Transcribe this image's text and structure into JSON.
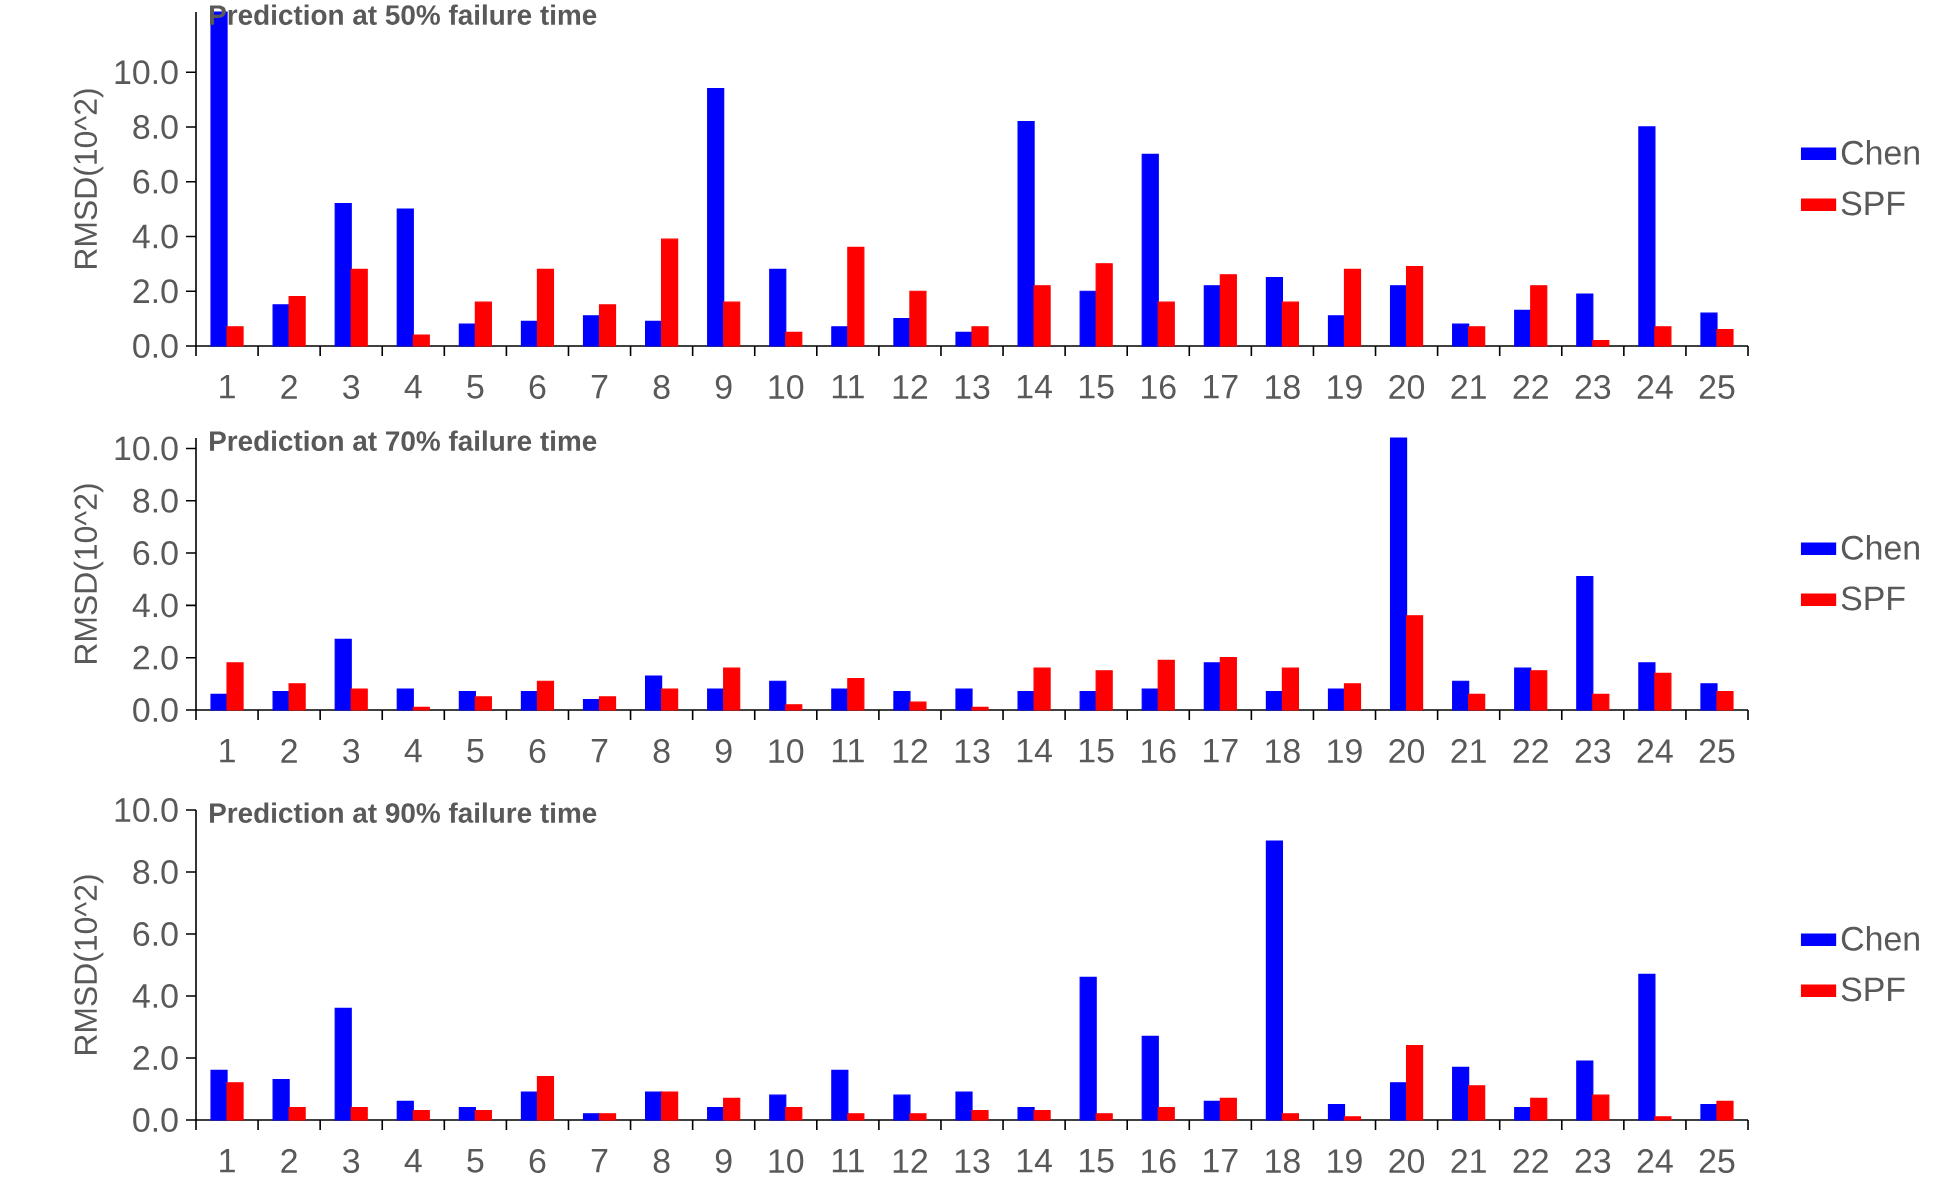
{
  "chart_data": [
    {
      "type": "bar",
      "title": "Prediction at 50% failure time",
      "ylabel": "RMSD(10^2)",
      "legend": "right",
      "categories": [
        "1",
        "2",
        "3",
        "4",
        "5",
        "6",
        "7",
        "8",
        "9",
        "10",
        "11",
        "12",
        "13",
        "14",
        "15",
        "16",
        "17",
        "18",
        "19",
        "20",
        "21",
        "22",
        "23",
        "24",
        "25"
      ],
      "series": [
        {
          "name": "Chen",
          "color": "#0000ff",
          "values": [
            12.2,
            1.5,
            5.2,
            5.0,
            0.8,
            0.9,
            1.1,
            0.9,
            9.4,
            2.8,
            0.7,
            1.0,
            0.5,
            8.2,
            2.0,
            7.0,
            2.2,
            2.5,
            1.1,
            2.2,
            0.8,
            1.3,
            1.9,
            8.0,
            1.2
          ]
        },
        {
          "name": "SPF",
          "color": "#ff0000",
          "values": [
            0.7,
            1.8,
            2.8,
            0.4,
            1.6,
            2.8,
            1.5,
            3.9,
            1.6,
            0.5,
            3.6,
            2.0,
            0.7,
            2.2,
            3.0,
            1.6,
            2.6,
            1.6,
            2.8,
            2.9,
            0.7,
            2.2,
            0.2,
            0.7,
            0.6
          ]
        }
      ],
      "ylim": [
        0,
        12.2
      ],
      "yticks": [
        {
          "value": 0,
          "label": "0.0"
        },
        {
          "value": 2,
          "label": "2.0"
        },
        {
          "value": 4,
          "label": "4.0"
        },
        {
          "value": 6,
          "label": "6.0"
        },
        {
          "value": 8,
          "label": "8.0"
        },
        {
          "value": 10,
          "label": "10.0"
        }
      ]
    },
    {
      "type": "bar",
      "title": "Prediction at 70% failure time",
      "ylabel": "RMSD(10^2)",
      "legend": "right",
      "categories": [
        "1",
        "2",
        "3",
        "4",
        "5",
        "6",
        "7",
        "8",
        "9",
        "10",
        "11",
        "12",
        "13",
        "14",
        "15",
        "16",
        "17",
        "18",
        "19",
        "20",
        "21",
        "22",
        "23",
        "24",
        "25"
      ],
      "series": [
        {
          "name": "Chen",
          "color": "#0000ff",
          "values": [
            0.6,
            0.7,
            2.7,
            0.8,
            0.7,
            0.7,
            0.4,
            1.3,
            0.8,
            1.1,
            0.8,
            0.7,
            0.8,
            0.7,
            0.7,
            0.8,
            1.8,
            0.7,
            0.8,
            10.4,
            1.1,
            1.6,
            5.1,
            1.8,
            1.0
          ]
        },
        {
          "name": "SPF",
          "color": "#ff0000",
          "values": [
            1.8,
            1.0,
            0.8,
            0.1,
            0.5,
            1.1,
            0.5,
            0.8,
            1.6,
            0.2,
            1.2,
            0.3,
            0.1,
            1.6,
            1.5,
            1.9,
            2.0,
            1.6,
            1.0,
            3.6,
            0.6,
            1.5,
            0.6,
            1.4,
            0.7
          ]
        }
      ],
      "ylim": [
        0,
        10.4
      ],
      "yticks": [
        {
          "value": 0,
          "label": "0.0"
        },
        {
          "value": 2,
          "label": "2.0"
        },
        {
          "value": 4,
          "label": "4.0"
        },
        {
          "value": 6,
          "label": "6.0"
        },
        {
          "value": 8,
          "label": "8.0"
        },
        {
          "value": 10,
          "label": "10.0"
        }
      ]
    },
    {
      "type": "bar",
      "title": "Prediction at 90% failure time",
      "ylabel": "RMSD(10^2)",
      "legend": "right",
      "categories": [
        "1",
        "2",
        "3",
        "4",
        "5",
        "6",
        "7",
        "8",
        "9",
        "10",
        "11",
        "12",
        "13",
        "14",
        "15",
        "16",
        "17",
        "18",
        "19",
        "20",
        "21",
        "22",
        "23",
        "24",
        "25"
      ],
      "series": [
        {
          "name": "Chen",
          "color": "#0000ff",
          "values": [
            1.6,
            1.3,
            3.6,
            0.6,
            0.4,
            0.9,
            0.2,
            0.9,
            0.4,
            0.8,
            1.6,
            0.8,
            0.9,
            0.4,
            4.6,
            2.7,
            0.6,
            9.0,
            0.5,
            1.2,
            1.7,
            0.4,
            1.9,
            4.7,
            0.5
          ]
        },
        {
          "name": "SPF",
          "color": "#ff0000",
          "values": [
            1.2,
            0.4,
            0.4,
            0.3,
            0.3,
            1.4,
            0.2,
            0.9,
            0.7,
            0.4,
            0.2,
            0.2,
            0.3,
            0.3,
            0.2,
            0.4,
            0.7,
            0.2,
            0.1,
            2.4,
            1.1,
            0.7,
            0.8,
            0.1,
            0.6
          ]
        }
      ],
      "ylim": [
        0,
        10
      ],
      "yticks": [
        {
          "value": 0,
          "label": "0.0"
        },
        {
          "value": 2,
          "label": "2.0"
        },
        {
          "value": 4,
          "label": "4.0"
        },
        {
          "value": 6,
          "label": "6.0"
        },
        {
          "value": 8,
          "label": "8.0"
        },
        {
          "value": 10,
          "label": "10.0"
        }
      ]
    }
  ]
}
